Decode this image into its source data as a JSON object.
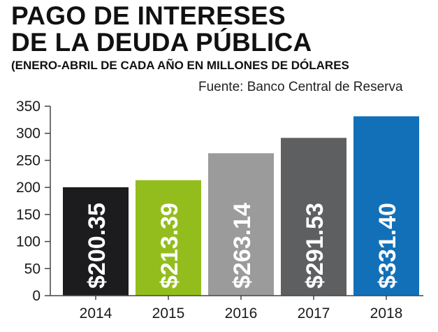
{
  "chart_data": {
    "type": "bar",
    "title_lines": [
      "PAGO DE INTERESES",
      "DE LA DEUDA PÚBLICA"
    ],
    "subtitle": "(ENERO-ABRIL DE CADA AÑO EN MILLONES DE DÓLARES",
    "source": "Fuente: Banco Central de Reserva",
    "categories": [
      "2014",
      "2015",
      "2016",
      "2017",
      "2018"
    ],
    "values": [
      200.35,
      213.39,
      263.14,
      291.53,
      331.4
    ],
    "data_labels": [
      "$200.35",
      "$213.39",
      "$263.14",
      "$291.53",
      "$331.40"
    ],
    "colors": [
      "#1c1c1e",
      "#93bd1d",
      "#9b9b9b",
      "#5e5f61",
      "#1170b8"
    ],
    "ylim": [
      0,
      350
    ],
    "yticks": [
      0,
      50,
      100,
      150,
      200,
      250,
      300,
      350
    ],
    "xlabel": "",
    "ylabel": "",
    "grid": false,
    "legend": "none"
  }
}
